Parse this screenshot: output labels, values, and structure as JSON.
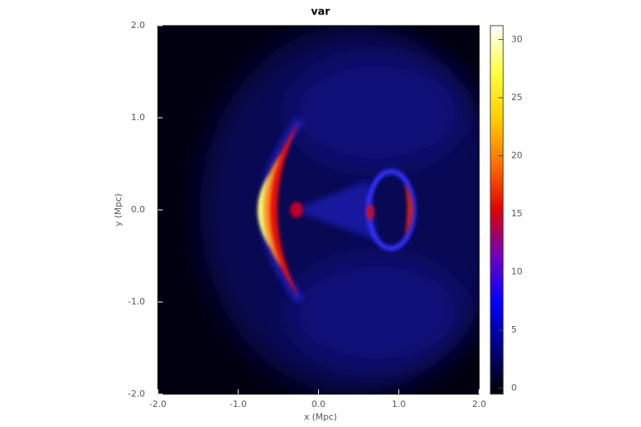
{
  "chart_data": {
    "type": "image",
    "title": "var",
    "x_label": "x (Mpc)",
    "y_label": "y (Mpc)",
    "xlim": [
      -2,
      2
    ],
    "ylim": [
      -2,
      2
    ],
    "xticks": [
      {
        "value": -2,
        "label": "-2.0"
      },
      {
        "value": -1,
        "label": "-1.0"
      },
      {
        "value": 0,
        "label": "0.0"
      },
      {
        "value": 1,
        "label": "1.0"
      },
      {
        "value": 2,
        "label": "2.0"
      }
    ],
    "yticks": [
      {
        "value": -2,
        "label": "-2.0"
      },
      {
        "value": -1,
        "label": "-1.0"
      },
      {
        "value": 0,
        "label": "0.0"
      },
      {
        "value": 1,
        "label": "1.0"
      },
      {
        "value": 2,
        "label": "2.0"
      }
    ],
    "colorbar": {
      "lim": [
        -0.5,
        31.2
      ],
      "ticks": [
        0,
        5,
        10,
        15,
        20,
        25,
        30
      ],
      "colormap": [
        "#000000",
        "#000080",
        "#0000ff",
        "#7000c0",
        "#e00000",
        "#ff7000",
        "#ffd000",
        "#ffff40",
        "#ffffff"
      ]
    }
  }
}
